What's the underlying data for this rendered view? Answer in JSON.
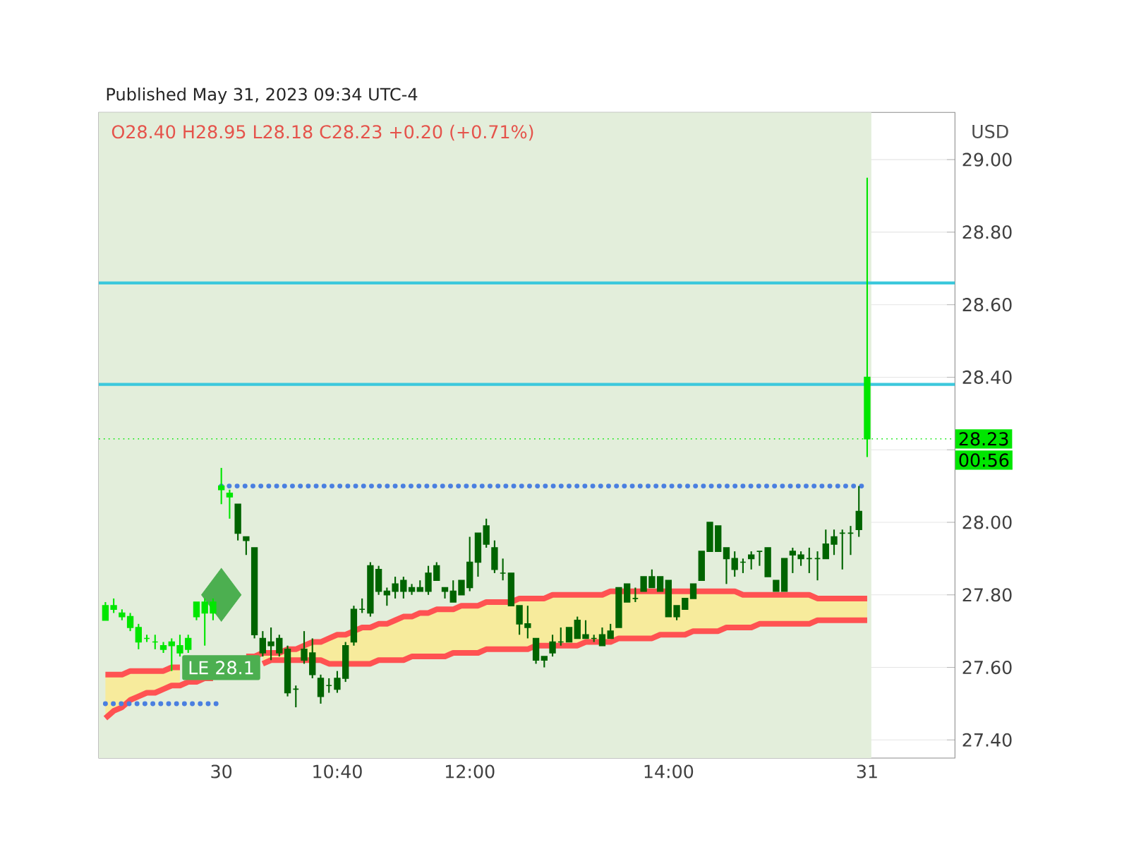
{
  "chart_data": {
    "type": "candlestick",
    "title": "O28.40  H28.95  L28.18  C28.23  +0.20 (+0.71%)",
    "subtitle": "Published May 31, 2023 09:34 UTC-4",
    "ylabel": "USD",
    "categories": [
      null,
      null,
      null,
      null,
      null,
      null,
      null,
      null,
      null,
      null,
      null,
      null,
      null,
      null,
      "30",
      null,
      null,
      null,
      null,
      null,
      null,
      null,
      null,
      null,
      null,
      null,
      null,
      null,
      "10:40",
      null,
      null,
      null,
      null,
      null,
      null,
      null,
      null,
      null,
      null,
      null,
      null,
      null,
      null,
      null,
      "12:00",
      null,
      null,
      null,
      null,
      null,
      null,
      null,
      null,
      null,
      null,
      null,
      null,
      null,
      null,
      null,
      null,
      null,
      null,
      null,
      null,
      null,
      null,
      null,
      "14:00",
      null,
      null,
      null,
      null,
      null,
      null,
      null,
      null,
      null,
      null,
      null,
      null,
      null,
      null,
      null,
      null,
      null,
      null,
      null,
      null,
      null,
      null,
      null,
      "31"
    ],
    "ohlc": [
      [
        27.77,
        27.78,
        27.73,
        27.73
      ],
      [
        27.77,
        27.79,
        27.75,
        27.76
      ],
      [
        27.75,
        27.76,
        27.73,
        27.74
      ],
      [
        27.74,
        27.75,
        27.7,
        27.71
      ],
      [
        27.71,
        27.72,
        27.65,
        27.67
      ],
      [
        27.68,
        27.69,
        27.67,
        27.68
      ],
      [
        27.67,
        27.69,
        27.65,
        27.67
      ],
      [
        27.66,
        27.67,
        27.64,
        27.65
      ],
      [
        27.67,
        27.68,
        27.59,
        27.66
      ],
      [
        27.66,
        27.69,
        27.63,
        27.64
      ],
      [
        27.68,
        27.69,
        27.64,
        27.65
      ],
      [
        27.78,
        27.78,
        27.73,
        27.74
      ],
      [
        27.78,
        27.79,
        27.66,
        27.75
      ],
      [
        27.78,
        27.79,
        27.73,
        27.75
      ],
      [
        28.1,
        28.15,
        28.05,
        28.09
      ],
      [
        28.08,
        28.09,
        28.01,
        28.07
      ],
      [
        27.97,
        28.05,
        27.95,
        28.05
      ],
      [
        27.95,
        27.96,
        27.91,
        27.96
      ],
      [
        27.69,
        27.93,
        27.68,
        27.93
      ],
      [
        27.64,
        27.7,
        27.63,
        27.68
      ],
      [
        27.66,
        27.71,
        27.62,
        27.67
      ],
      [
        27.64,
        27.69,
        27.63,
        27.68
      ],
      [
        27.53,
        27.66,
        27.52,
        27.65
      ],
      [
        27.54,
        27.55,
        27.49,
        27.54
      ],
      [
        27.62,
        27.7,
        27.61,
        27.65
      ],
      [
        27.58,
        27.68,
        27.57,
        27.64
      ],
      [
        27.52,
        27.58,
        27.5,
        27.57
      ],
      [
        27.55,
        27.57,
        27.53,
        27.55
      ],
      [
        27.54,
        27.59,
        27.53,
        27.57
      ],
      [
        27.57,
        27.67,
        27.56,
        27.66
      ],
      [
        27.67,
        27.77,
        27.66,
        27.76
      ],
      [
        27.76,
        27.79,
        27.75,
        27.76
      ],
      [
        27.75,
        27.89,
        27.74,
        27.88
      ],
      [
        27.81,
        27.88,
        27.8,
        27.87
      ],
      [
        27.8,
        27.82,
        27.77,
        27.81
      ],
      [
        27.81,
        27.85,
        27.79,
        27.83
      ],
      [
        27.81,
        27.85,
        27.79,
        27.84
      ],
      [
        27.81,
        27.83,
        27.8,
        27.82
      ],
      [
        27.81,
        27.84,
        27.81,
        27.82
      ],
      [
        27.81,
        27.88,
        27.8,
        27.86
      ],
      [
        27.84,
        27.89,
        27.84,
        27.88
      ],
      [
        27.81,
        27.82,
        27.79,
        27.82
      ],
      [
        27.78,
        27.84,
        27.78,
        27.81
      ],
      [
        27.8,
        27.84,
        27.8,
        27.84
      ],
      [
        27.82,
        27.96,
        27.81,
        27.89
      ],
      [
        27.89,
        27.97,
        27.85,
        27.97
      ],
      [
        27.94,
        28.01,
        27.93,
        27.99
      ],
      [
        27.87,
        27.95,
        27.86,
        27.93
      ],
      [
        27.86,
        27.9,
        27.84,
        27.86
      ],
      [
        27.77,
        27.86,
        27.77,
        27.86
      ],
      [
        27.72,
        27.77,
        27.69,
        27.77
      ],
      [
        27.71,
        27.77,
        27.68,
        27.72
      ],
      [
        27.62,
        27.68,
        27.61,
        27.68
      ],
      [
        27.62,
        27.63,
        27.6,
        27.63
      ],
      [
        27.64,
        27.69,
        27.63,
        27.67
      ],
      [
        27.67,
        27.71,
        27.66,
        27.67
      ],
      [
        27.67,
        27.71,
        27.67,
        27.71
      ],
      [
        27.68,
        27.74,
        27.68,
        27.73
      ],
      [
        27.68,
        27.73,
        27.68,
        27.69
      ],
      [
        27.68,
        27.69,
        27.67,
        27.68
      ],
      [
        27.66,
        27.71,
        27.66,
        27.69
      ],
      [
        27.68,
        27.72,
        27.68,
        27.7
      ],
      [
        27.71,
        27.82,
        27.71,
        27.82
      ],
      [
        27.78,
        27.83,
        27.78,
        27.83
      ],
      [
        27.79,
        27.82,
        27.78,
        27.79
      ],
      [
        27.81,
        27.85,
        27.81,
        27.85
      ],
      [
        27.82,
        27.87,
        27.82,
        27.85
      ],
      [
        27.81,
        27.85,
        27.81,
        27.85
      ],
      [
        27.74,
        27.84,
        27.74,
        27.84
      ],
      [
        27.74,
        27.77,
        27.73,
        27.77
      ],
      [
        27.76,
        27.79,
        27.76,
        27.79
      ],
      [
        27.79,
        27.83,
        27.79,
        27.83
      ],
      [
        27.84,
        27.92,
        27.84,
        27.92
      ],
      [
        27.92,
        28.0,
        27.92,
        28.0
      ],
      [
        27.92,
        27.99,
        27.92,
        27.99
      ],
      [
        27.9,
        27.93,
        27.83,
        27.93
      ],
      [
        27.87,
        27.92,
        27.85,
        27.9
      ],
      [
        27.89,
        27.9,
        27.86,
        27.89
      ],
      [
        27.9,
        27.92,
        27.87,
        27.91
      ],
      [
        27.92,
        27.92,
        27.88,
        27.92
      ],
      [
        27.85,
        27.93,
        27.85,
        27.93
      ],
      [
        27.81,
        27.84,
        27.81,
        27.84
      ],
      [
        27.81,
        27.9,
        27.81,
        27.9
      ],
      [
        27.91,
        27.93,
        27.86,
        27.92
      ],
      [
        27.9,
        27.92,
        27.88,
        27.91
      ],
      [
        27.9,
        27.93,
        27.86,
        27.9
      ],
      [
        27.9,
        27.92,
        27.84,
        27.9
      ],
      [
        27.9,
        27.98,
        27.9,
        27.94
      ],
      [
        27.94,
        27.98,
        27.91,
        27.96
      ],
      [
        27.97,
        27.98,
        27.87,
        27.97
      ],
      [
        27.97,
        27.99,
        27.91,
        27.97
      ],
      [
        27.98,
        28.1,
        27.96,
        28.03
      ],
      [
        28.4,
        28.95,
        28.18,
        28.23
      ]
    ],
    "colors": [
      "#00e600",
      "#00e600",
      "#00e600",
      "#00e600",
      "#00e600",
      "#00e600",
      "#00e600",
      "#00e600",
      "#00e600",
      "#00e600",
      "#00e600",
      "#00e600",
      "#00e600",
      "#00e600",
      "#00e600",
      "#00e600",
      "#006400",
      "#006400",
      "#006400",
      "#006400",
      "#006400",
      "#006400",
      "#006400",
      "#006400",
      "#006400",
      "#006400",
      "#006400",
      "#006400",
      "#006400",
      "#006400",
      "#006400",
      "#006400",
      "#006400",
      "#006400",
      "#006400",
      "#006400",
      "#006400",
      "#006400",
      "#006400",
      "#006400",
      "#006400",
      "#006400",
      "#006400",
      "#006400",
      "#006400",
      "#006400",
      "#006400",
      "#006400",
      "#006400",
      "#006400",
      "#006400",
      "#006400",
      "#006400",
      "#006400",
      "#006400",
      "#006400",
      "#006400",
      "#006400",
      "#006400",
      "#006400",
      "#006400",
      "#006400",
      "#006400",
      "#006400",
      "#006400",
      "#006400",
      "#006400",
      "#006400",
      "#006400",
      "#006400",
      "#006400",
      "#006400",
      "#006400",
      "#006400",
      "#006400",
      "#006400",
      "#006400",
      "#006400",
      "#006400",
      "#006400",
      "#006400",
      "#006400",
      "#006400",
      "#006400",
      "#006400",
      "#006400",
      "#006400",
      "#006400",
      "#006400",
      "#006400",
      "#006400",
      "#006400",
      "#00e600"
    ],
    "series": [
      {
        "type": "line",
        "color": "#ff5252",
        "values": [
          27.58,
          27.58,
          27.58,
          27.59,
          27.59,
          27.59,
          27.59,
          27.59,
          27.6,
          27.6,
          null,
          null,
          null,
          null,
          null,
          null,
          null,
          27.63,
          27.63,
          27.64,
          27.64,
          27.64,
          27.65,
          27.65,
          27.66,
          27.67,
          27.67,
          27.68,
          27.69,
          27.69,
          27.7,
          27.71,
          27.71,
          27.72,
          27.72,
          27.73,
          27.74,
          27.74,
          27.75,
          27.75,
          27.76,
          27.76,
          27.76,
          27.77,
          27.77,
          27.77,
          27.78,
          27.78,
          27.78,
          27.78,
          27.79,
          27.79,
          27.79,
          27.79,
          27.8,
          27.8,
          27.8,
          27.8,
          27.8,
          27.8,
          27.8,
          27.81,
          27.81,
          27.81,
          27.81,
          27.81,
          27.81,
          27.81,
          27.81,
          27.81,
          27.81,
          27.81,
          27.81,
          27.81,
          27.81,
          27.81,
          27.81,
          27.8,
          27.8,
          27.8,
          27.8,
          27.8,
          27.8,
          27.8,
          27.8,
          27.8,
          27.79,
          27.79,
          27.79,
          27.79,
          27.79,
          27.79,
          27.79
        ],
        "upper": [
          27.58,
          27.58,
          27.58,
          27.59,
          27.59,
          27.59,
          27.59,
          27.59,
          27.6,
          27.6,
          null,
          null,
          null,
          null,
          null,
          null,
          null,
          null,
          null,
          27.64,
          27.64,
          27.64,
          27.65,
          27.65,
          27.66,
          27.67,
          27.67,
          27.68,
          27.69,
          27.69,
          27.7,
          27.71,
          27.71,
          27.72,
          27.72,
          27.73,
          27.74,
          27.74,
          27.75,
          27.75,
          27.76,
          27.76,
          27.76,
          27.77,
          27.77,
          27.77,
          27.78,
          27.78,
          27.78,
          27.78,
          27.79,
          27.79,
          27.79,
          27.79,
          27.8,
          27.8,
          27.8,
          27.8,
          27.8,
          27.8,
          27.8,
          27.81,
          27.81,
          27.81,
          27.81,
          27.81,
          27.81,
          27.81,
          27.81,
          27.81,
          27.81,
          27.81,
          27.81,
          27.81,
          27.81,
          27.81,
          27.81,
          27.8,
          27.8,
          27.8,
          27.8,
          27.8,
          27.8,
          27.8,
          27.8,
          27.8,
          27.79,
          27.79,
          27.79,
          27.79,
          27.79,
          27.79,
          27.79
        ],
        "lower": [
          27.46,
          27.48,
          27.49,
          27.51,
          27.52,
          27.53,
          27.53,
          27.54,
          27.55,
          27.55,
          null,
          null,
          null,
          null,
          null,
          null,
          null,
          null,
          null,
          27.61,
          27.62,
          27.62,
          27.62,
          27.62,
          27.62,
          27.62,
          27.62,
          27.61,
          27.61,
          27.61,
          27.61,
          27.61,
          27.61,
          27.62,
          27.62,
          27.62,
          27.62,
          27.63,
          27.63,
          27.63,
          27.63,
          27.63,
          27.64,
          27.64,
          27.64,
          27.64,
          27.65,
          27.65,
          27.65,
          27.65,
          27.65,
          27.65,
          27.66,
          27.66,
          27.66,
          27.66,
          27.66,
          27.66,
          27.67,
          27.67,
          27.67,
          27.67,
          27.68,
          27.68,
          27.68,
          27.68,
          27.68,
          27.69,
          27.69,
          27.69,
          27.69,
          27.7,
          27.7,
          27.7,
          27.7,
          27.71,
          27.71,
          27.71,
          27.71,
          27.72,
          27.72,
          27.72,
          27.72,
          27.72,
          27.72,
          27.72,
          27.73,
          27.73,
          27.73,
          27.73,
          27.73,
          27.73,
          27.73
        ]
      },
      {
        "type": "line",
        "color": "#ff5252",
        "values": [
          27.46,
          27.48,
          27.49,
          27.51,
          27.52,
          27.53,
          27.53,
          27.54,
          27.55,
          27.55,
          27.56,
          27.56,
          27.57,
          27.57,
          null,
          null,
          null,
          null,
          null,
          27.61,
          27.62,
          27.62,
          27.62,
          27.62,
          27.62,
          27.62,
          27.62,
          27.61,
          27.61,
          27.61,
          27.61,
          27.61,
          27.61,
          27.62,
          27.62,
          27.62,
          27.62,
          27.63,
          27.63,
          27.63,
          27.63,
          27.63,
          27.64,
          27.64,
          27.64,
          27.64,
          27.65,
          27.65,
          27.65,
          27.65,
          27.65,
          27.65,
          27.66,
          27.66,
          27.66,
          27.66,
          27.66,
          27.66,
          27.67,
          27.67,
          27.67,
          27.67,
          27.68,
          27.68,
          27.68,
          27.68,
          27.68,
          27.69,
          27.69,
          27.69,
          27.69,
          27.7,
          27.7,
          27.7,
          27.7,
          27.71,
          27.71,
          27.71,
          27.71,
          27.72,
          27.72,
          27.72,
          27.72,
          27.72,
          27.72,
          27.72,
          27.73,
          27.73,
          27.73,
          27.73,
          27.73,
          27.73,
          27.73
        ]
      },
      {
        "type": "line",
        "color": "#4a7fe0",
        "line_style": "dotted",
        "values": [
          27.5,
          27.5,
          27.5,
          27.5,
          27.5,
          27.5,
          27.5,
          27.5,
          27.5,
          27.5,
          27.5,
          27.5,
          27.5,
          27.5,
          27.5,
          null,
          null,
          null,
          null,
          null,
          null,
          null,
          null,
          null,
          null,
          null,
          null,
          null,
          null,
          null,
          null,
          null,
          null,
          null,
          null,
          null,
          null,
          null,
          null,
          null,
          null,
          null,
          null,
          null,
          null,
          null,
          null,
          null,
          null,
          null,
          null,
          null,
          null,
          null,
          null,
          null,
          null,
          null,
          null,
          null,
          null,
          null,
          null,
          null,
          null,
          null,
          null,
          null,
          null,
          null,
          null,
          null,
          null,
          null,
          null,
          null,
          null,
          null,
          null,
          null,
          null,
          null,
          null,
          null,
          null,
          null,
          null,
          null,
          null,
          null,
          null,
          null,
          null
        ]
      },
      {
        "type": "line",
        "color": "#4a7fe0",
        "line_style": "dotted",
        "values": [
          null,
          null,
          null,
          null,
          null,
          null,
          null,
          null,
          null,
          null,
          null,
          null,
          null,
          null,
          28.1,
          28.1,
          28.1,
          28.1,
          28.1,
          28.1,
          28.1,
          28.1,
          28.1,
          28.1,
          28.1,
          28.1,
          28.1,
          28.1,
          28.1,
          28.1,
          28.1,
          28.1,
          28.1,
          28.1,
          28.1,
          28.1,
          28.1,
          28.1,
          28.1,
          28.1,
          28.1,
          28.1,
          28.1,
          28.1,
          28.1,
          28.1,
          28.1,
          28.1,
          28.1,
          28.1,
          28.1,
          28.1,
          28.1,
          28.1,
          28.1,
          28.1,
          28.1,
          28.1,
          28.1,
          28.1,
          28.1,
          28.1,
          28.1,
          28.1,
          28.1,
          28.1,
          28.1,
          28.1,
          28.1,
          28.1,
          28.1,
          28.1,
          28.1,
          28.1,
          28.1,
          28.1,
          28.1,
          28.1,
          28.1,
          28.1,
          28.1,
          28.1,
          28.1,
          28.1,
          28.1,
          28.1,
          28.1,
          28.1,
          28.1,
          28.1,
          28.1,
          28.1,
          28.1
        ]
      },
      {
        "type": "scatter",
        "color": "#4caf50",
        "marker": "diamond",
        "values": [
          null,
          null,
          null,
          null,
          null,
          null,
          null,
          null,
          null,
          null,
          null,
          null,
          null,
          null,
          27.8,
          null,
          null,
          null,
          null,
          null,
          null,
          null,
          null,
          null,
          null,
          null,
          null,
          null,
          null,
          null,
          null,
          null,
          null,
          null,
          null,
          null,
          null,
          null,
          null,
          null,
          null,
          null,
          null,
          null,
          null,
          null,
          null,
          null,
          null,
          null,
          null,
          null,
          null,
          null,
          null,
          null,
          null,
          null,
          null,
          null,
          null,
          null,
          null,
          null,
          null,
          null,
          null,
          null,
          null,
          null,
          null,
          null,
          null,
          null,
          null,
          null,
          null,
          null,
          null,
          null,
          null,
          null,
          null,
          null,
          null,
          null,
          null,
          null,
          null,
          null,
          null,
          null,
          null
        ]
      }
    ],
    "ref_lines": [
      {
        "axis": "y",
        "value": 28.66,
        "color": "#3cc8dc"
      },
      {
        "axis": "y",
        "value": 28.38,
        "color": "#3cc8dc"
      },
      {
        "axis": "y",
        "value": 28.23,
        "label": "28.23",
        "color": "#00e600",
        "line_style": "dotted"
      }
    ],
    "annotations": [
      "LE 28.1",
      "00:56"
    ],
    "ylim": [
      27.35,
      29.13
    ],
    "yticks": [
      {
        "value": 27.4,
        "label": "27.40"
      },
      {
        "value": 27.6,
        "label": "27.60"
      },
      {
        "value": 27.8,
        "label": "27.80"
      },
      {
        "value": 28.0,
        "label": "28.00"
      },
      {
        "value": 28.2,
        "label": null
      },
      {
        "value": 28.4,
        "label": "28.40"
      },
      {
        "value": 28.6,
        "label": "28.60"
      },
      {
        "value": 28.8,
        "label": "28.80"
      },
      {
        "value": 29.0,
        "label": "29.00"
      }
    ],
    "grid": true
  }
}
